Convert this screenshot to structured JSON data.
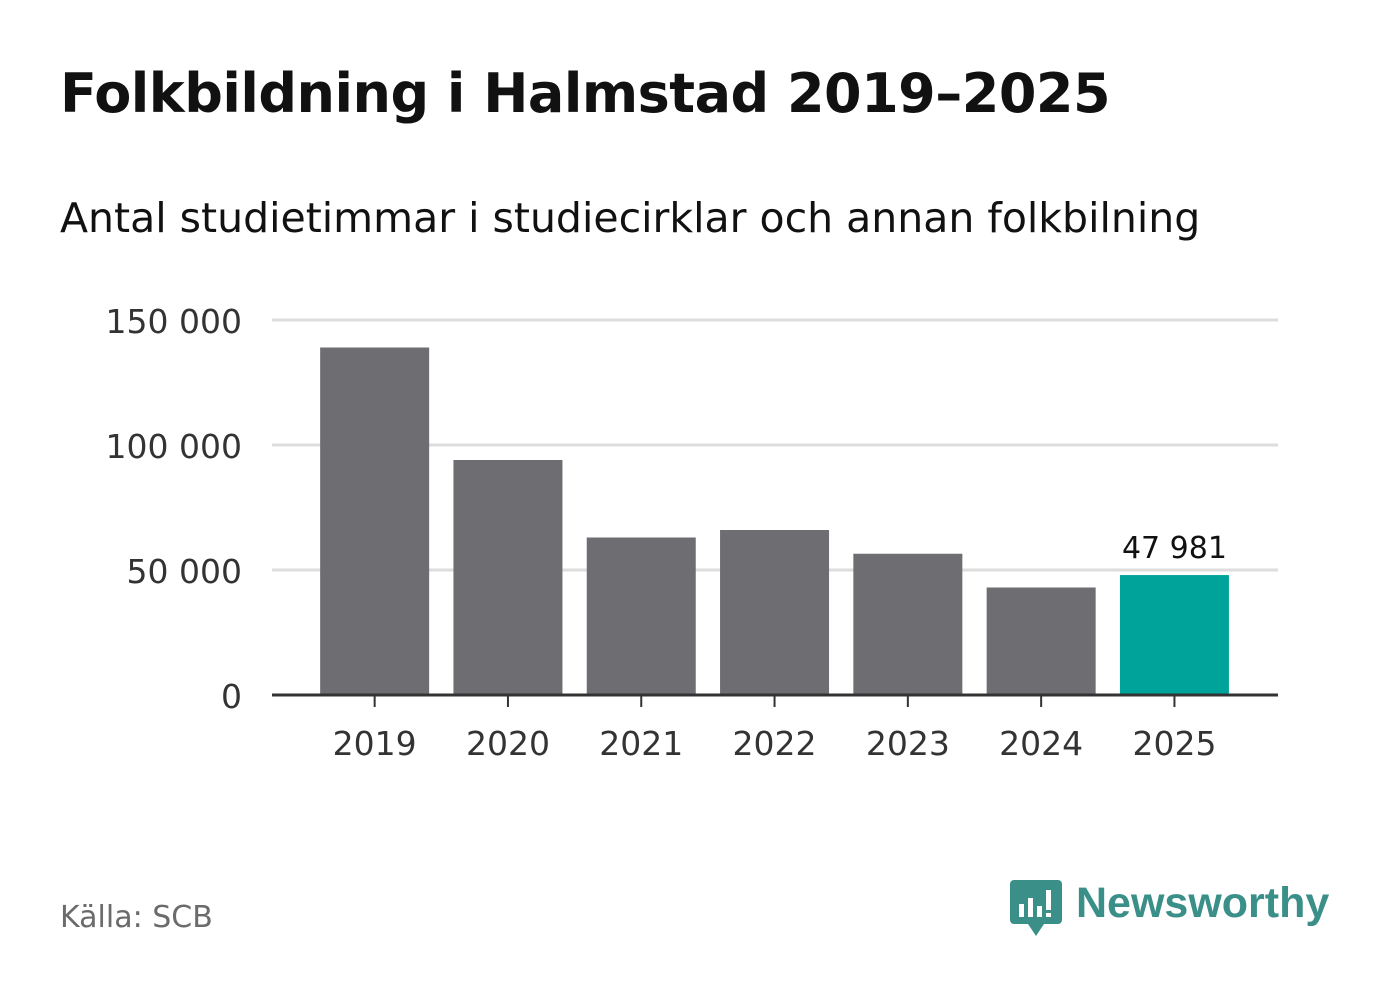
{
  "header": {
    "title": "Folkbildning i Halmstad 2019–2025",
    "subtitle": "Antal studietimmar i studiecirklar och annan folkbilning"
  },
  "footer": {
    "source": "Källa: SCB",
    "brand": "Newsworthy",
    "brand_icon": "bar-chart-speech-bubble-icon"
  },
  "colors": {
    "bar": "#6e6d72",
    "highlight_bar": "#00a399",
    "grid": "#dddddd",
    "axis": "#333333",
    "text": "#333333",
    "brand": "#3a9088"
  },
  "chart_data": {
    "type": "bar",
    "title": "Folkbildning i Halmstad 2019–2025",
    "subtitle": "Antal studietimmar i studiecirklar och annan folkbilning",
    "xlabel": "",
    "ylabel": "",
    "categories": [
      "2019",
      "2020",
      "2021",
      "2022",
      "2023",
      "2024",
      "2025"
    ],
    "values": [
      139000,
      94000,
      63000,
      66000,
      56500,
      43000,
      47981
    ],
    "highlight_index": 6,
    "highlight_label": "47 981",
    "ylim": [
      0,
      150000
    ],
    "yticks": [
      0,
      50000,
      100000,
      150000
    ],
    "ytick_labels": [
      "0",
      "50 000",
      "100 000",
      "150 000"
    ],
    "grid": true,
    "legend": "none"
  }
}
